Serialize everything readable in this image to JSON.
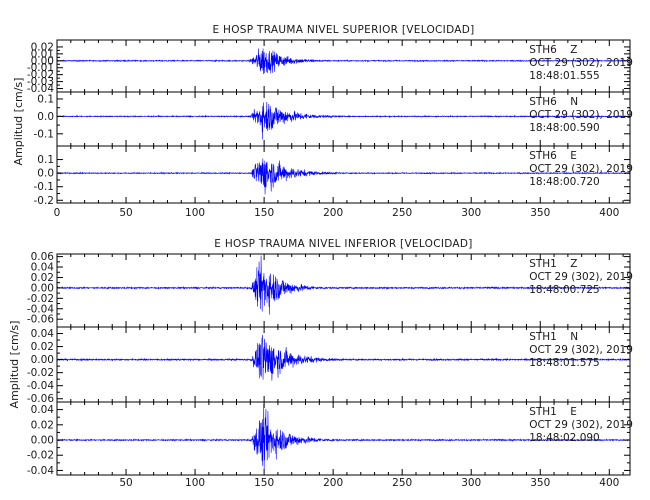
{
  "chart_data": [
    {
      "type": "line",
      "title": "E HOSP TRAUMA NIVEL SUPERIOR [VELOCIDAD]",
      "xlabel": "",
      "ylabel": "Amplitud [cm/s]",
      "xlim": [
        0,
        415
      ],
      "x_ticks": [
        0,
        50,
        100,
        150,
        200,
        250,
        300,
        350,
        400
      ],
      "series_color": "#0000ff",
      "panels": [
        {
          "station": "STH6",
          "component": "Z",
          "date": "OCT 29 (302), 2019",
          "time": "18:48:01.555",
          "ylim": [
            -0.045,
            0.03
          ],
          "y_ticks": [
            0.02,
            0.01,
            0.0,
            -0.01,
            -0.02,
            -0.03,
            -0.04
          ],
          "y_tick_labels": [
            "0.02",
            "0.01",
            "0.00",
            "-0.01",
            "-0.02",
            "-0.03",
            "-0.04"
          ],
          "noise": 0.0008,
          "onset": 139,
          "peak": 0.025,
          "peak_time": 149,
          "decay": 14,
          "coda_end": 200
        },
        {
          "station": "STH6",
          "component": "N",
          "date": "OCT 29 (302), 2019",
          "time": "18:48:00.590",
          "ylim": [
            -0.17,
            0.14
          ],
          "y_ticks": [
            0.1,
            0.0,
            -0.1
          ],
          "y_tick_labels": [
            "0.1",
            "0.0",
            "-0.1"
          ],
          "noise": 0.003,
          "onset": 140,
          "peak": 0.12,
          "peak_time": 150,
          "decay": 16,
          "coda_end": 210
        },
        {
          "station": "STH6",
          "component": "E",
          "date": "OCT 29 (302), 2019",
          "time": "18:48:00.720",
          "ylim": [
            -0.22,
            0.2
          ],
          "y_ticks": [
            0.1,
            0.0,
            -0.1,
            -0.2
          ],
          "y_tick_labels": [
            "0.1",
            "0.0",
            "-0.1",
            "-0.2"
          ],
          "noise": 0.004,
          "onset": 140,
          "peak": 0.17,
          "peak_time": 149,
          "decay": 16,
          "coda_end": 210
        }
      ]
    },
    {
      "type": "line",
      "title": "E HOSP TRAUMA NIVEL INFERIOR [VELOCIDAD]",
      "xlabel": "",
      "ylabel": "Amplitud [cm/s]",
      "xlim": [
        0,
        415
      ],
      "x_ticks": [
        50,
        100,
        150,
        200,
        250,
        300,
        350,
        400
      ],
      "series_color": "#0000ff",
      "panels": [
        {
          "station": "STH1",
          "component": "Z",
          "date": "OCT 29 (302), 2019",
          "time": "18:48:00.725",
          "ylim": [
            -0.075,
            0.065
          ],
          "y_ticks": [
            0.06,
            0.04,
            0.02,
            0.0,
            -0.02,
            -0.04,
            -0.06
          ],
          "y_tick_labels": [
            "0.06",
            "0.04",
            "0.02",
            "0.00",
            "-0.02",
            "-0.04",
            "-0.06"
          ],
          "noise": 0.0015,
          "onset": 140,
          "peak": 0.06,
          "peak_time": 149,
          "decay": 13,
          "coda_end": 200
        },
        {
          "station": "STH1",
          "component": "N",
          "date": "OCT 29 (302), 2019",
          "time": "18:48:01.575",
          "ylim": [
            -0.065,
            0.05
          ],
          "y_ticks": [
            0.04,
            0.02,
            0.0,
            -0.02,
            -0.04,
            -0.06
          ],
          "y_tick_labels": [
            "0.04",
            "0.02",
            "0.00",
            "-0.02",
            "-0.04",
            "-0.06"
          ],
          "noise": 0.0012,
          "onset": 140,
          "peak": 0.045,
          "peak_time": 150,
          "decay": 16,
          "coda_end": 210
        },
        {
          "station": "STH1",
          "component": "E",
          "date": "OCT 29 (302), 2019",
          "time": "18:48:02.090",
          "ylim": [
            -0.046,
            0.05
          ],
          "y_ticks": [
            0.04,
            0.02,
            0.0,
            -0.02,
            -0.04
          ],
          "y_tick_labels": [
            "0.04",
            "0.02",
            "0.00",
            "-0.02",
            "-0.04"
          ],
          "noise": 0.0009,
          "onset": 140,
          "peak": 0.04,
          "peak_time": 149,
          "decay": 15,
          "coda_end": 205
        }
      ]
    }
  ]
}
